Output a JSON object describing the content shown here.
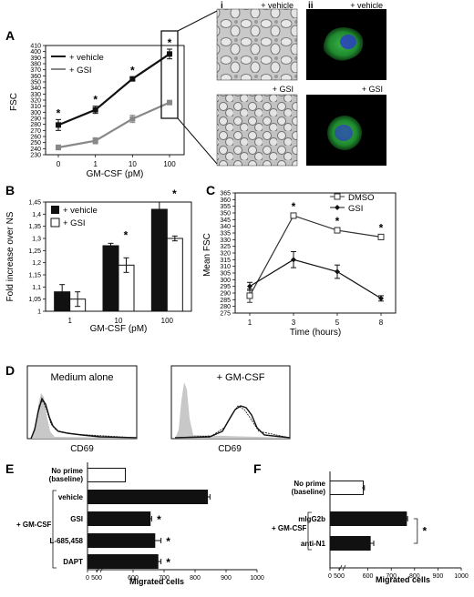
{
  "panels": {
    "A": {
      "letter": "A"
    },
    "B": {
      "letter": "B"
    },
    "C": {
      "letter": "C"
    },
    "D": {
      "letter": "D"
    },
    "E": {
      "letter": "E"
    },
    "F": {
      "letter": "F"
    }
  },
  "micro": {
    "i_label": "i",
    "ii_label": "ii",
    "top_left": "+ vehicle",
    "top_right": "+ vehicle",
    "bottom_left": "+ GSI",
    "bottom_right": "+ GSI"
  },
  "flow": {
    "left_title": "Medium alone",
    "right_title": "+ GM-CSF",
    "left_xlabel": "CD69",
    "right_xlabel": "CD69"
  },
  "significance": "*",
  "chart_data": [
    {
      "id": "A",
      "type": "line",
      "categories": [
        "0",
        "1",
        "10",
        "100"
      ],
      "xlabel": "GM-CSF (pM)",
      "ylabel": "FSC",
      "ylim": [
        230,
        410
      ],
      "yticks": [
        "230",
        "240",
        "250",
        "260",
        "270",
        "280",
        "290",
        "300",
        "310",
        "320",
        "330",
        "340",
        "350",
        "360",
        "370",
        "380",
        "390",
        "400",
        "410"
      ],
      "series": [
        {
          "name": "+ vehicle",
          "color": "#111111",
          "values": [
            279,
            304,
            355,
            396
          ],
          "errors": [
            9,
            6,
            3,
            8
          ],
          "sig": [
            true,
            true,
            true,
            true
          ]
        },
        {
          "name": "+ GSI",
          "color": "#888888",
          "values": [
            242,
            253,
            289,
            316
          ],
          "errors": [
            4,
            5,
            6,
            3
          ],
          "sig": [
            false,
            false,
            false,
            false
          ]
        }
      ]
    },
    {
      "id": "B",
      "type": "bar",
      "categories": [
        "1",
        "10",
        "100"
      ],
      "xlabel": "GM-CSF (pM)",
      "ylabel": "Fold increase over NS",
      "ylim": [
        1,
        1.45
      ],
      "yticks": [
        "1",
        "1,05",
        "1,1",
        "1,15",
        "1,2",
        "1,25",
        "1,3",
        "1,35",
        "1,4",
        "1,45"
      ],
      "series": [
        {
          "name": "+ vehicle",
          "color": "#111111",
          "values": [
            1.08,
            1.27,
            1.42
          ],
          "errors": [
            0.03,
            0.01,
            0.03
          ]
        },
        {
          "name": "+ GSI",
          "color": "#ffffff",
          "values": [
            1.05,
            1.19,
            1.3
          ],
          "errors": [
            0.03,
            0.03,
            0.01
          ]
        }
      ],
      "sig": [
        false,
        true,
        true
      ]
    },
    {
      "id": "C",
      "type": "line",
      "categories": [
        "1",
        "3",
        "5",
        "8"
      ],
      "xlabel": "Time (hours)",
      "ylabel": "Mean FSC",
      "ylim": [
        275,
        365
      ],
      "yticks": [
        "275",
        "280",
        "285",
        "290",
        "295",
        "300",
        "305",
        "310",
        "315",
        "320",
        "325",
        "330",
        "335",
        "340",
        "345",
        "350",
        "355",
        "360",
        "365"
      ],
      "series": [
        {
          "name": "DMSO",
          "color": "#333333",
          "marker": "square",
          "values": [
            288,
            348,
            337,
            332
          ],
          "errors": [
            5,
            2,
            2,
            2
          ],
          "sig": [
            false,
            true,
            true,
            true
          ]
        },
        {
          "name": "GSI",
          "color": "#111111",
          "marker": "diamond",
          "values": [
            295,
            315,
            306,
            286
          ],
          "errors": [
            3,
            6,
            5,
            2
          ],
          "sig": [
            false,
            false,
            false,
            false
          ]
        }
      ]
    },
    {
      "id": "E",
      "type": "bar",
      "orientation": "horizontal",
      "categories": [
        "No prime (baseline)",
        "vehicle",
        "GSI",
        "L-685,458",
        "DAPT"
      ],
      "group_label": "+ GM-CSF",
      "xlabel": "Migrated cells",
      "xlim": [
        0,
        1000
      ],
      "xticks": [
        "0",
        "500",
        "600",
        "700",
        "800",
        "900",
        "1000"
      ],
      "values": [
        575,
        840,
        655,
        670,
        680
      ],
      "errors": [
        0,
        8,
        5,
        20,
        10
      ],
      "fill": [
        "#ffffff",
        "#111111",
        "#111111",
        "#111111",
        "#111111"
      ],
      "sig": [
        false,
        false,
        true,
        true,
        true
      ]
    },
    {
      "id": "F",
      "type": "bar",
      "orientation": "horizontal",
      "categories": [
        "No prime (baseline)",
        "mIgG2b",
        "anti-N1"
      ],
      "group_label": "+ GM-CSF",
      "xlabel": "Migrated cells",
      "xlim": [
        0,
        1000
      ],
      "xticks": [
        "0",
        "500",
        "600",
        "700",
        "800",
        "900",
        "1000"
      ],
      "values": [
        580,
        765,
        610
      ],
      "errors": [
        5,
        5,
        15
      ],
      "fill": [
        "#ffffff",
        "#111111",
        "#111111"
      ],
      "bracket_sig": "*"
    }
  ]
}
